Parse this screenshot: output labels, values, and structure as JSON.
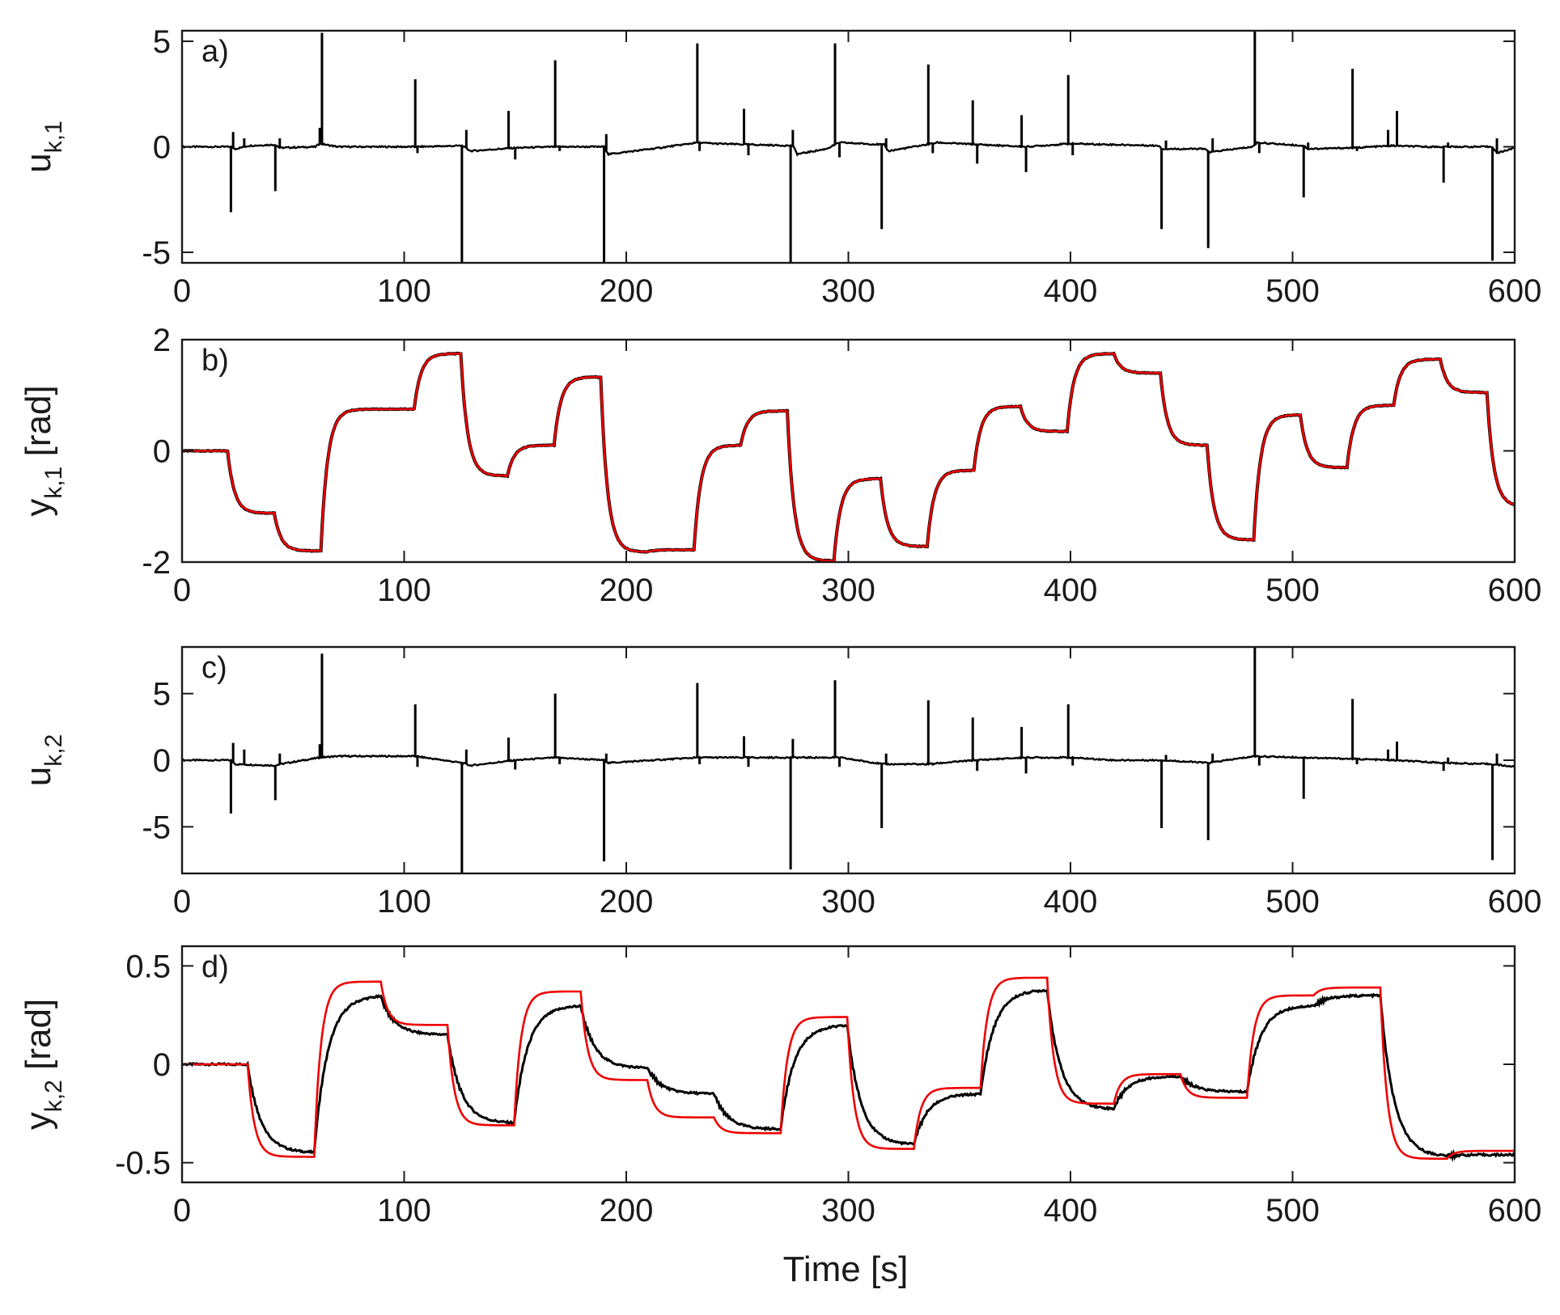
{
  "figure": {
    "xlabel": "Time [s]",
    "colors": {
      "measured": "#000000",
      "reference": "#ee0000",
      "axes": "#1a1a1a"
    }
  },
  "chart_data": [
    {
      "type": "line",
      "panel": "a)",
      "ylabel_main": "u",
      "ylabel_sub": "k,1",
      "ylabel_unit": "",
      "xlim": [
        0,
        600
      ],
      "ylim": [
        -5.5,
        5.5
      ],
      "xticks": [
        0,
        100,
        200,
        300,
        400,
        500,
        600
      ],
      "yticks": [
        -5,
        0,
        5
      ],
      "ytick_labels": [
        "-5",
        "0",
        "5"
      ],
      "baseline": [
        [
          0,
          0.0
        ],
        [
          22,
          0.0
        ],
        [
          24,
          -0.1
        ],
        [
          30,
          0.05
        ],
        [
          42,
          0.1
        ],
        [
          44,
          -0.05
        ],
        [
          60,
          0.0
        ],
        [
          62,
          0.15
        ],
        [
          70,
          0.0
        ],
        [
          105,
          0.0
        ],
        [
          126,
          0.05
        ],
        [
          130,
          -0.2
        ],
        [
          150,
          -0.05
        ],
        [
          168,
          0.0
        ],
        [
          190,
          0.0
        ],
        [
          192,
          -0.35
        ],
        [
          215,
          -0.05
        ],
        [
          232,
          0.2
        ],
        [
          240,
          0.15
        ],
        [
          275,
          0.05
        ],
        [
          277,
          -0.35
        ],
        [
          290,
          -0.1
        ],
        [
          296,
          0.2
        ],
        [
          316,
          0.1
        ],
        [
          318,
          -0.2
        ],
        [
          335,
          0.1
        ],
        [
          340,
          0.2
        ],
        [
          380,
          0.0
        ],
        [
          400,
          0.15
        ],
        [
          440,
          0.05
        ],
        [
          441,
          -0.1
        ],
        [
          460,
          -0.1
        ],
        [
          463,
          -0.25
        ],
        [
          482,
          0.0
        ],
        [
          484,
          0.2
        ],
        [
          505,
          0.05
        ],
        [
          507,
          -0.1
        ],
        [
          527,
          -0.05
        ],
        [
          545,
          0.05
        ],
        [
          560,
          0.0
        ],
        [
          568,
          0.0
        ],
        [
          590,
          0.0
        ],
        [
          592,
          -0.3
        ],
        [
          600,
          -0.05
        ]
      ],
      "spikes": [
        [
          22,
          -3.1
        ],
        [
          23,
          0.7
        ],
        [
          28,
          0.4
        ],
        [
          42,
          -2.1
        ],
        [
          44,
          0.4
        ],
        [
          62,
          0.9
        ],
        [
          63,
          5.4
        ],
        [
          105,
          3.2
        ],
        [
          106,
          -0.3
        ],
        [
          126,
          -5.5
        ],
        [
          128,
          0.8
        ],
        [
          147,
          1.7
        ],
        [
          150,
          -0.6
        ],
        [
          168,
          4.1
        ],
        [
          170,
          -0.2
        ],
        [
          190,
          -5.5
        ],
        [
          191,
          0.6
        ],
        [
          232,
          4.9
        ],
        [
          233,
          -0.2
        ],
        [
          253,
          1.8
        ],
        [
          255,
          -0.4
        ],
        [
          274,
          -5.5
        ],
        [
          275,
          0.8
        ],
        [
          294,
          4.9
        ],
        [
          296,
          -0.5
        ],
        [
          315,
          -3.9
        ],
        [
          317,
          0.4
        ],
        [
          336,
          3.9
        ],
        [
          338,
          -0.3
        ],
        [
          356,
          2.2
        ],
        [
          358,
          -0.8
        ],
        [
          378,
          1.5
        ],
        [
          380,
          -1.2
        ],
        [
          399,
          3.4
        ],
        [
          401,
          -0.4
        ],
        [
          441,
          -3.9
        ],
        [
          443,
          0.3
        ],
        [
          462,
          -4.8
        ],
        [
          464,
          0.4
        ],
        [
          483,
          5.5
        ],
        [
          485,
          -0.3
        ],
        [
          505,
          -2.4
        ],
        [
          507,
          0.2
        ],
        [
          527,
          3.7
        ],
        [
          529,
          -0.2
        ],
        [
          543,
          0.8
        ],
        [
          547,
          1.7
        ],
        [
          568,
          -1.7
        ],
        [
          570,
          0.2
        ],
        [
          590,
          -5.4
        ],
        [
          592,
          0.4
        ]
      ],
      "reference": []
    },
    {
      "type": "line",
      "panel": "b)",
      "ylabel_main": "y",
      "ylabel_sub": "k,1",
      "ylabel_unit": " [rad]",
      "xlim": [
        0,
        600
      ],
      "ylim": [
        -2,
        2
      ],
      "xticks": [
        0,
        100,
        200,
        300,
        400,
        500,
        600
      ],
      "yticks": [
        -2,
        0,
        2
      ],
      "ytick_labels": [
        "-2",
        "0",
        "2"
      ],
      "step_times": [
        0,
        21,
        42,
        63,
        105,
        126,
        147,
        168,
        189,
        210,
        231,
        252,
        273,
        294,
        315,
        336,
        357,
        378,
        399,
        420,
        441,
        462,
        483,
        504,
        525,
        546,
        567,
        588
      ],
      "step_levels": [
        0.0,
        -1.12,
        -1.8,
        0.75,
        1.75,
        -0.45,
        0.1,
        1.33,
        -1.82,
        -1.78,
        0.1,
        0.72,
        -1.98,
        -0.5,
        -1.72,
        -0.35,
        0.8,
        0.35,
        1.75,
        1.4,
        0.1,
        -1.6,
        0.65,
        -0.3,
        0.82,
        1.65,
        1.05,
        -1.0
      ],
      "tau": 3.0,
      "spikes": [],
      "reference": []
    },
    {
      "type": "line",
      "panel": "c)",
      "ylabel_main": "u",
      "ylabel_sub": "k,2",
      "ylabel_unit": "",
      "xlim": [
        0,
        600
      ],
      "ylim": [
        -8.5,
        8.5
      ],
      "xticks": [
        0,
        100,
        200,
        300,
        400,
        500,
        600
      ],
      "yticks": [
        -5,
        0,
        5
      ],
      "ytick_labels": [
        "-5",
        "0",
        "5"
      ],
      "baseline": [
        [
          0,
          0.0
        ],
        [
          22,
          0.0
        ],
        [
          24,
          -0.3
        ],
        [
          42,
          -0.4
        ],
        [
          44,
          -0.3
        ],
        [
          62,
          0.2
        ],
        [
          70,
          0.3
        ],
        [
          105,
          0.3
        ],
        [
          126,
          -0.2
        ],
        [
          130,
          -0.4
        ],
        [
          150,
          0.0
        ],
        [
          168,
          0.2
        ],
        [
          190,
          0.0
        ],
        [
          192,
          -0.2
        ],
        [
          232,
          0.2
        ],
        [
          240,
          0.2
        ],
        [
          275,
          0.2
        ],
        [
          296,
          0.2
        ],
        [
          316,
          -0.3
        ],
        [
          335,
          -0.3
        ],
        [
          357,
          0.0
        ],
        [
          380,
          0.2
        ],
        [
          400,
          0.2
        ],
        [
          420,
          0.0
        ],
        [
          441,
          0.0
        ],
        [
          462,
          -0.2
        ],
        [
          483,
          0.3
        ],
        [
          505,
          0.2
        ],
        [
          527,
          0.1
        ],
        [
          545,
          0.0
        ],
        [
          568,
          -0.2
        ],
        [
          590,
          -0.3
        ],
        [
          600,
          -0.5
        ]
      ],
      "spikes": [
        [
          22,
          -4.0
        ],
        [
          23,
          1.3
        ],
        [
          28,
          0.8
        ],
        [
          42,
          -3.0
        ],
        [
          44,
          0.5
        ],
        [
          62,
          1.2
        ],
        [
          63,
          8.0
        ],
        [
          105,
          4.2
        ],
        [
          106,
          -0.5
        ],
        [
          126,
          -8.5
        ],
        [
          128,
          0.8
        ],
        [
          147,
          1.7
        ],
        [
          150,
          -0.7
        ],
        [
          168,
          5.0
        ],
        [
          170,
          -0.3
        ],
        [
          190,
          -7.6
        ],
        [
          191,
          0.5
        ],
        [
          232,
          5.8
        ],
        [
          233,
          -0.3
        ],
        [
          253,
          1.8
        ],
        [
          255,
          -0.5
        ],
        [
          274,
          -8.2
        ],
        [
          275,
          1.6
        ],
        [
          294,
          6.0
        ],
        [
          296,
          -0.5
        ],
        [
          315,
          -5.1
        ],
        [
          317,
          0.5
        ],
        [
          336,
          4.5
        ],
        [
          338,
          -0.4
        ],
        [
          356,
          3.2
        ],
        [
          358,
          -0.8
        ],
        [
          378,
          2.5
        ],
        [
          380,
          -1.0
        ],
        [
          399,
          4.2
        ],
        [
          401,
          -0.4
        ],
        [
          441,
          -5.1
        ],
        [
          443,
          0.4
        ],
        [
          462,
          -6.0
        ],
        [
          464,
          0.5
        ],
        [
          483,
          8.5
        ],
        [
          485,
          -0.4
        ],
        [
          505,
          -2.9
        ],
        [
          507,
          0.2
        ],
        [
          527,
          4.6
        ],
        [
          529,
          -0.3
        ],
        [
          543,
          0.8
        ],
        [
          547,
          1.4
        ],
        [
          568,
          -0.8
        ],
        [
          570,
          0.2
        ],
        [
          590,
          -7.5
        ],
        [
          592,
          0.5
        ]
      ],
      "reference": []
    },
    {
      "type": "line",
      "panel": "d)",
      "ylabel_main": "y",
      "ylabel_sub": "k,2",
      "ylabel_unit": " [rad]",
      "xlim": [
        0,
        600
      ],
      "ylim": [
        -0.6,
        0.6
      ],
      "xticks": [
        0,
        100,
        200,
        300,
        400,
        500,
        600
      ],
      "yticks": [
        -0.5,
        0,
        0.5
      ],
      "ytick_labels": [
        "-0.5",
        "0",
        "0.5"
      ],
      "ref_times": [
        0,
        30,
        60,
        90,
        120,
        150,
        180,
        210,
        240,
        270,
        300,
        330,
        360,
        390,
        420,
        450,
        480,
        510,
        540,
        570
      ],
      "ref_levels": [
        0.0,
        -0.47,
        0.42,
        0.2,
        -0.31,
        0.37,
        -0.08,
        -0.27,
        -0.35,
        0.24,
        -0.43,
        -0.12,
        0.44,
        -0.2,
        -0.05,
        -0.17,
        0.35,
        0.39,
        -0.48,
        -0.44
      ],
      "meas_levels": [
        0.0,
        -0.45,
        0.35,
        0.15,
        -0.3,
        0.3,
        -0.02,
        -0.15,
        -0.33,
        0.2,
        -0.41,
        -0.15,
        0.38,
        -0.23,
        -0.06,
        -0.14,
        0.3,
        0.35,
        -0.47,
        -0.46
      ],
      "ref_tau": 3.0,
      "meas_tau": 6.0,
      "spikes": [],
      "reference": []
    }
  ]
}
